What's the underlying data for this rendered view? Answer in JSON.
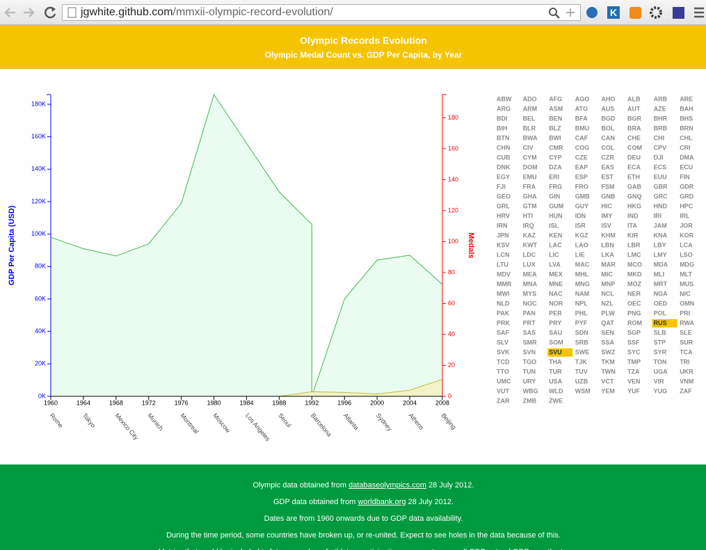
{
  "browser": {
    "url_host": "jgwhite.github.com",
    "url_path": "/mmxii-olympic-record-evolution/",
    "k_icon": "K"
  },
  "header": {
    "title": "Olympic Records Evolution",
    "subtitle": "Olympic Medal Count vs. GDP Per Capita, by Year"
  },
  "chart": {
    "type": "area",
    "y_label": "GDP Per Capita (USD)",
    "y2_label": "Medals",
    "xlim": [
      1960,
      2008
    ],
    "xticks": [
      1960,
      1964,
      1968,
      1972,
      1976,
      1980,
      1984,
      1988,
      1992,
      1996,
      2000,
      2004,
      2008
    ],
    "host_cities": [
      "Rome",
      "Tokyo",
      "Mexico City",
      "Munich",
      "Montreal",
      "Moscow",
      "Los Angeles",
      "Seoul",
      "Barcelona",
      "Atlanta",
      "Sydney",
      "Athens",
      "Beijing"
    ],
    "ylim": [
      0,
      186000
    ],
    "yticks": [
      {
        "value": 0,
        "label": "0K"
      },
      {
        "value": 20000,
        "label": "20K"
      },
      {
        "value": 40000,
        "label": "40K"
      },
      {
        "value": 60000,
        "label": "60K"
      },
      {
        "value": 80000,
        "label": "80K"
      },
      {
        "value": 100000,
        "label": "100K"
      },
      {
        "value": 120000,
        "label": "120K"
      },
      {
        "value": 140000,
        "label": "140K"
      },
      {
        "value": 160000,
        "label": "160K"
      },
      {
        "value": 180000,
        "label": "180K"
      }
    ],
    "y2lim": [
      0,
      195
    ],
    "y2ticks": [
      0,
      20,
      40,
      60,
      80,
      100,
      120,
      140,
      160,
      180
    ],
    "y_color": "#0000ff",
    "y2_color": "#ff0000",
    "series": [
      {
        "color": "#3cb44b",
        "fill": "#eafcf0",
        "x": [
          1960,
          1964,
          1968,
          1972,
          1976,
          1980,
          1984,
          1988,
          1992,
          1992,
          1996,
          2000,
          2004,
          2008
        ],
        "values": [
          98000,
          91000,
          86500,
          94000,
          119000,
          186000,
          156000,
          126000,
          106000,
          0,
          60000,
          84000,
          87000,
          69000
        ]
      },
      {
        "color": "#c2bb3a",
        "fill": "#f2f2c8",
        "axis": "y2",
        "x": [
          1988,
          1992,
          1996,
          2000,
          2004,
          2008
        ],
        "values": [
          0,
          3,
          2.5,
          1.5,
          4,
          11
        ]
      }
    ]
  },
  "countries": {
    "codes": [
      "ABW",
      "ADO",
      "AFG",
      "AGO",
      "AHO",
      "ALB",
      "ARB",
      "ARE",
      "ARG",
      "ARM",
      "ASM",
      "ATG",
      "AUS",
      "AUT",
      "AZE",
      "BAH",
      "BDI",
      "BEL",
      "BEN",
      "BFA",
      "BGD",
      "BGR",
      "BHR",
      "BHS",
      "BIH",
      "BLR",
      "BLZ",
      "BMU",
      "BOL",
      "BRA",
      "BRB",
      "BRN",
      "BTN",
      "BWA",
      "BWI",
      "CAF",
      "CAN",
      "CHE",
      "CHI",
      "CHL",
      "CHN",
      "CIV",
      "CMR",
      "COG",
      "COL",
      "COM",
      "CPV",
      "CRI",
      "CUB",
      "CYM",
      "CYP",
      "CZE",
      "CZR",
      "DEU",
      "DJI",
      "DMA",
      "DNK",
      "DOM",
      "DZA",
      "EAP",
      "EAS",
      "ECA",
      "ECS",
      "ECU",
      "EGY",
      "EMU",
      "ERI",
      "ESP",
      "EST",
      "ETH",
      "EUU",
      "FIN",
      "FJI",
      "FRA",
      "FRG",
      "FRO",
      "FSM",
      "GAB",
      "GBR",
      "GDR",
      "GEO",
      "GHA",
      "GIN",
      "GMB",
      "GNB",
      "GNQ",
      "GRC",
      "GRD",
      "GRL",
      "GTM",
      "GUM",
      "GUY",
      "HIC",
      "HKG",
      "HND",
      "HPC",
      "HRV",
      "HTI",
      "HUN",
      "IDN",
      "IMY",
      "IND",
      "IRI",
      "IRL",
      "IRN",
      "IRQ",
      "ISL",
      "ISR",
      "ISV",
      "ITA",
      "JAM",
      "JOR",
      "JPN",
      "KAZ",
      "KEN",
      "KGZ",
      "KHM",
      "KIR",
      "KNA",
      "KOR",
      "KSV",
      "KWT",
      "LAC",
      "LAO",
      "LBN",
      "LBR",
      "LBY",
      "LCA",
      "LCN",
      "LDC",
      "LIC",
      "LIE",
      "LKA",
      "LMC",
      "LMY",
      "LSO",
      "LTU",
      "LUX",
      "LVA",
      "MAC",
      "MAR",
      "MCO",
      "MDA",
      "MDG",
      "MDV",
      "MEA",
      "MEX",
      "MHL",
      "MIC",
      "MKD",
      "MLI",
      "MLT",
      "MMR",
      "MNA",
      "MNE",
      "MNG",
      "MNP",
      "MOZ",
      "MRT",
      "MUS",
      "MWI",
      "MYS",
      "NAC",
      "NAM",
      "NCL",
      "NER",
      "NGA",
      "NIC",
      "NLD",
      "NOC",
      "NOR",
      "NPL",
      "NZL",
      "OEC",
      "OED",
      "OMN",
      "PAK",
      "PAN",
      "PER",
      "PHL",
      "PLW",
      "PNG",
      "POL",
      "PRI",
      "PRK",
      "PRT",
      "PRY",
      "PYF",
      "QAT",
      "ROM",
      "RUS",
      "RWA",
      "SAF",
      "SAS",
      "SAU",
      "SDN",
      "SEN",
      "SGP",
      "SLB",
      "SLE",
      "SLV",
      "SMR",
      "SOM",
      "SRB",
      "SSA",
      "SSF",
      "STP",
      "SUR",
      "SVK",
      "SVN",
      "SVU",
      "SWE",
      "SWZ",
      "SYC",
      "SYR",
      "TCA",
      "TCD",
      "TGO",
      "THA",
      "TJK",
      "TKM",
      "TMP",
      "TON",
      "TRI",
      "TTO",
      "TUN",
      "TUR",
      "TUV",
      "TWN",
      "TZA",
      "UGA",
      "UKR",
      "UMC",
      "URY",
      "USA",
      "UZB",
      "VCT",
      "VEN",
      "VIR",
      "VNM",
      "VUT",
      "WBG",
      "WLD",
      "WSM",
      "YEM",
      "YUF",
      "YUG",
      "ZAF",
      "ZAR",
      "ZMB",
      "ZWE"
    ],
    "highlighted": [
      "RUS",
      "SVU"
    ],
    "highlight_color": "#f5c400"
  },
  "footer": {
    "lines": [
      {
        "before": "Olympic data obtained from",
        "link": "databaseolympics.com",
        "after": "28 July 2012."
      },
      {
        "before": "GDP data obtained from",
        "link": "worldbank.org",
        "after": "28 July 2012."
      },
      {
        "text": "Dates are from 1960 onwards due to GDP data availability."
      },
      {
        "text": "During the time period, some countries have broken up, or re-united. Expect to see holes in the data because of this."
      },
      {
        "text": "Metrics that could be included in future: number of athletes participating per country, overall GDP, rate of GDP growth etc."
      }
    ]
  }
}
